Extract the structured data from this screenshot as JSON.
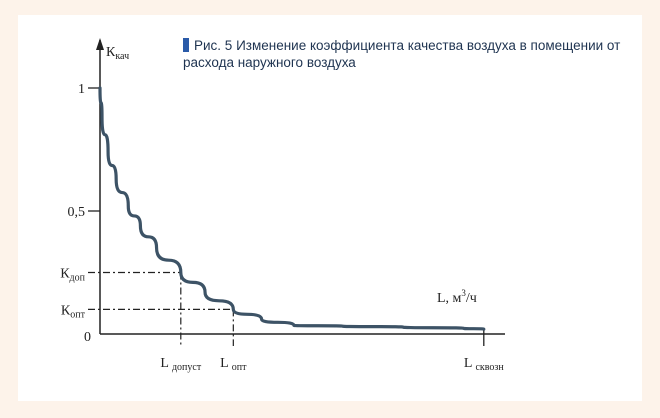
{
  "caption": {
    "label": "Рис. 5",
    "text": "Изменение коэффициента качества воздуха в помещении от расхода наружного воздуха"
  },
  "colors": {
    "curve": "#3d5366",
    "axes": "#222222",
    "caption_marker": "#2a5aa8",
    "caption_text": "#1e3350",
    "background": "#fdf3ea"
  },
  "chart_data": {
    "type": "line",
    "title": "Рис. 5 Изменение коэффициента качества воздуха в помещении от расхода наружного воздуха",
    "ylabel": {
      "main": "К",
      "sub": "кач"
    },
    "xlabel": {
      "main": "L, м",
      "sup": "3",
      "tail": "/ч"
    },
    "origin_label": "0",
    "ylim": [
      0,
      1.2
    ],
    "xlim": [
      0,
      1.05
    ],
    "y_ticks": [
      {
        "value": 1,
        "label": "1"
      },
      {
        "value": 0.5,
        "label": "0,5"
      }
    ],
    "reference_y": [
      {
        "value": 0.25,
        "main": "К",
        "sub": "доп"
      },
      {
        "value": 0.1,
        "main": "К",
        "sub": "опт"
      }
    ],
    "reference_x": [
      {
        "value": 0.2,
        "main": "L ",
        "sub": "допуст"
      },
      {
        "value": 0.33,
        "main": "L ",
        "sub": "опт"
      },
      {
        "value": 0.95,
        "main": "L ",
        "sub": "сквозн"
      }
    ],
    "series": [
      {
        "points": [
          [
            0.0,
            1.0
          ],
          [
            0.005,
            0.88
          ],
          [
            0.02,
            0.74
          ],
          [
            0.04,
            0.63
          ],
          [
            0.07,
            0.52
          ],
          [
            0.1,
            0.44
          ],
          [
            0.14,
            0.35
          ],
          [
            0.2,
            0.25
          ],
          [
            0.26,
            0.17
          ],
          [
            0.33,
            0.1
          ],
          [
            0.4,
            0.06
          ],
          [
            0.48,
            0.035
          ],
          [
            0.6,
            0.032
          ],
          [
            0.75,
            0.028
          ],
          [
            0.9,
            0.023
          ],
          [
            0.95,
            0.02
          ]
        ]
      }
    ]
  }
}
